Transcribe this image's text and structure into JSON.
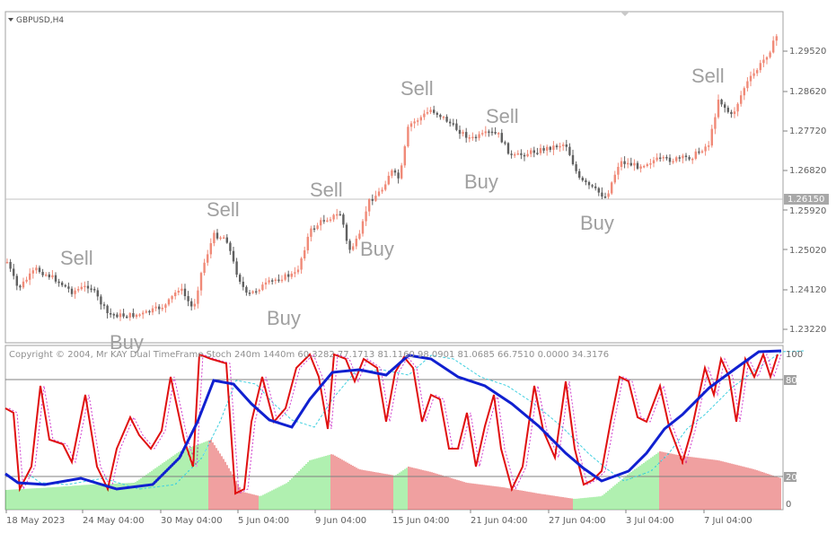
{
  "window": {
    "symbol_label": "GBPUSD,H4"
  },
  "colors": {
    "bull": "#f08a78",
    "bear": "#606060",
    "stoch_main": "#e01010",
    "stoch_signal": "#d040d0",
    "slow_line": "#1020d0",
    "slow_signal": "#40d0e0",
    "hist_up": "#60e060",
    "hist_down": "#e04040",
    "label": "#a0a0a0",
    "axis_text": "#707070"
  },
  "price_axis": {
    "ticks": [
      "1.29520",
      "1.28620",
      "1.27720",
      "1.26820",
      "1.25920",
      "1.25020",
      "1.24120",
      "1.23220"
    ],
    "current_price": "1.26150"
  },
  "signals": [
    {
      "text": "Sell",
      "type": "sell"
    },
    {
      "text": "Buy",
      "type": "buy"
    },
    {
      "text": "Sell",
      "type": "sell"
    },
    {
      "text": "Buy",
      "type": "buy"
    },
    {
      "text": "Sell",
      "type": "sell"
    },
    {
      "text": "Buy",
      "type": "buy"
    },
    {
      "text": "Sell",
      "type": "sell"
    },
    {
      "text": "Sell",
      "type": "sell"
    },
    {
      "text": "Buy",
      "type": "buy"
    },
    {
      "text": "Buy",
      "type": "buy"
    },
    {
      "text": "Sell",
      "type": "sell"
    }
  ],
  "indicator": {
    "caption": "Copyright © 2004, Mr KAY Dual TimeFrame Stoch 240m 1440m 60.3282 77.1713 81.1160 98.0901 81.0685 66.7510 0.0000 34.3176",
    "levels": [
      "100",
      "80",
      "20",
      "0"
    ]
  },
  "time_axis": {
    "labels": [
      "18 May 2023",
      "24 May 04:00",
      "30 May 04:00",
      "5 Jun 04:00",
      "9 Jun 04:00",
      "15 Jun 04:00",
      "21 Jun 04:00",
      "27 Jun 04:00",
      "3 Jul 04:00",
      "7 Jul 04:00"
    ]
  }
}
